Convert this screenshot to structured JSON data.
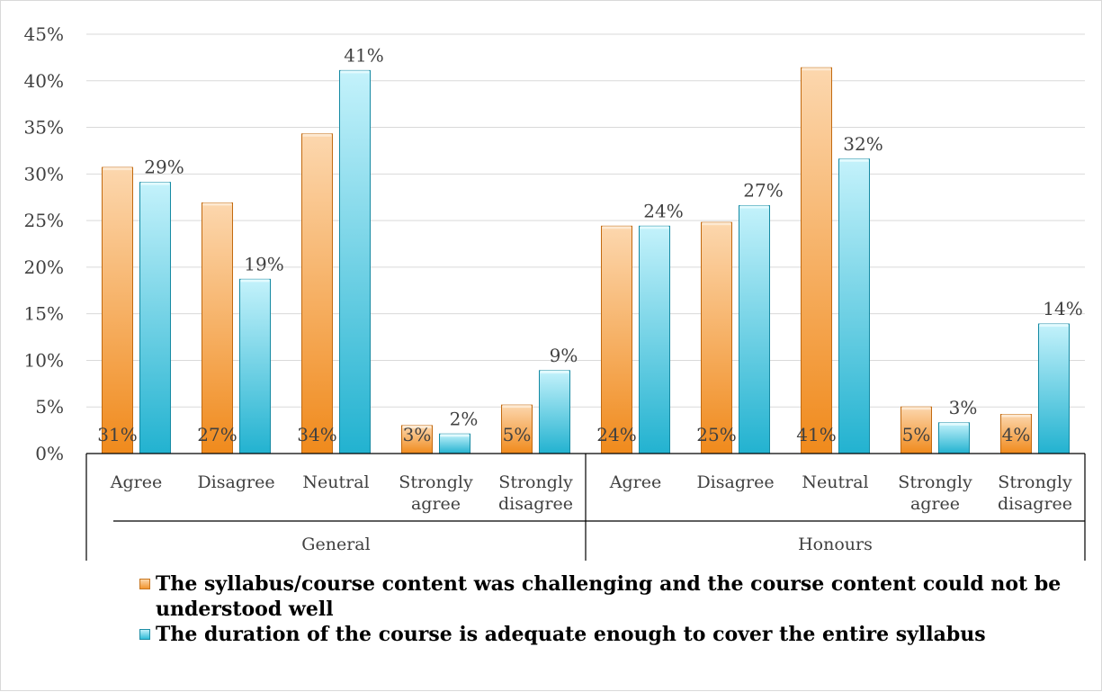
{
  "chart_data": {
    "type": "bar",
    "y_ticks": [
      "0%",
      "5%",
      "10%",
      "15%",
      "20%",
      "25%",
      "30%",
      "35%",
      "40%",
      "45%"
    ],
    "ylim": [
      0,
      45
    ],
    "grid": true,
    "groups": [
      {
        "name": "General",
        "categories": [
          "Agree",
          "Disagree",
          "Neutral",
          "Strongly agree",
          "Strongly disagree"
        ],
        "category_lines": [
          [
            "Agree"
          ],
          [
            "Disagree"
          ],
          [
            "Neutral"
          ],
          [
            "Strongly",
            "agree"
          ],
          [
            "Strongly",
            "disagree"
          ]
        ]
      },
      {
        "name": "Honours",
        "categories": [
          "Agree",
          "Disagree",
          "Neutral",
          "Strongly agree",
          "Strongly disagree"
        ],
        "category_lines": [
          [
            "Agree"
          ],
          [
            "Disagree"
          ],
          [
            "Neutral"
          ],
          [
            "Strongly",
            "agree"
          ],
          [
            "Strongly",
            "disagree"
          ]
        ]
      }
    ],
    "series": [
      {
        "name": "The syllabus/course content was challenging and the course content could not be understood well",
        "color": "#f2952f",
        "values": [
          30.7,
          26.9,
          34.3,
          3.0,
          5.2,
          24.4,
          24.8,
          41.4,
          5.0,
          4.2
        ],
        "labels": [
          "31%",
          "27%",
          "34%",
          "3%",
          "5%",
          "24%",
          "25%",
          "41%",
          "5%",
          "4%"
        ],
        "label_position": "inside-base"
      },
      {
        "name": "The duration of the course is adequate enough to cover the entire syllabus",
        "color": "#2fbcd8",
        "values": [
          29.1,
          18.7,
          41.1,
          2.1,
          8.9,
          24.4,
          26.6,
          31.6,
          3.3,
          13.9
        ],
        "labels": [
          "29%",
          "19%",
          "41%",
          "2%",
          "9%",
          "24%",
          "27%",
          "32%",
          "3%",
          "14%"
        ],
        "label_position": "outside-top"
      }
    ],
    "legend_position": "bottom"
  }
}
